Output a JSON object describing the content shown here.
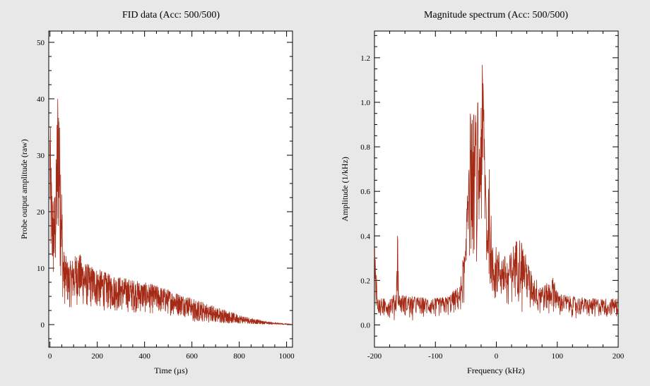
{
  "chart_data": [
    {
      "type": "line",
      "title": "FID data (Acc: 500/500)",
      "xlabel": "Time (µs)",
      "ylabel": "Probe output amplitude (raw)",
      "xlim": [
        -5,
        1025
      ],
      "ylim": [
        -4,
        52
      ],
      "xticks": [
        0,
        200,
        400,
        600,
        800,
        1000
      ],
      "yticks": [
        0,
        10,
        20,
        30,
        40,
        50
      ],
      "grid": false,
      "line_color": "#a52a16",
      "envelope": {
        "x": [
          0,
          4,
          8,
          12,
          16,
          20,
          25,
          30,
          34,
          38,
          42,
          46,
          50,
          55,
          60,
          70,
          80,
          100,
          120,
          150,
          200,
          250,
          300,
          350,
          400,
          450,
          500,
          550,
          600,
          650,
          700,
          750,
          800,
          850,
          900,
          950,
          1000,
          1020
        ],
        "y": [
          40,
          31,
          26,
          24,
          22,
          24,
          27,
          38,
          46,
          43,
          35,
          32,
          25,
          14,
          13,
          12,
          11,
          12,
          13,
          11,
          10,
          9,
          8.5,
          8,
          7.5,
          7,
          6.3,
          5.5,
          4.8,
          4,
          3.3,
          2.5,
          1.8,
          1.2,
          0.7,
          0.35,
          0.15,
          0.1
        ]
      }
    },
    {
      "type": "line",
      "title": "Magnitude spectrum (Acc: 500/500)",
      "xlabel": "Frequency (kHz)",
      "ylabel": "Amplitude (1/kHz)",
      "xlim": [
        -200,
        200
      ],
      "ylim": [
        -0.1,
        1.32
      ],
      "xticks": [
        -200,
        -100,
        0,
        100,
        200
      ],
      "yticks": [
        0.0,
        0.2,
        0.4,
        0.6,
        0.8,
        1.0,
        1.2
      ],
      "ytick_labels": [
        "0.0",
        "0.2",
        "0.4",
        "0.6",
        "0.8",
        "1.0",
        "1.2"
      ],
      "grid": false,
      "line_color": "#a52a16",
      "envelope": {
        "x": [
          -200,
          -199,
          -195,
          -180,
          -165,
          -162,
          -160,
          -140,
          -100,
          -80,
          -60,
          -55,
          -50,
          -48,
          -45,
          -40,
          -35,
          -30,
          -28,
          -25,
          -22,
          -20,
          -18,
          -15,
          -12,
          -10,
          -5,
          0,
          10,
          20,
          30,
          40,
          50,
          60,
          80,
          95,
          100,
          120,
          150,
          180,
          200
        ],
        "y": [
          0.35,
          0.4,
          0.12,
          0.12,
          0.14,
          0.45,
          0.14,
          0.13,
          0.12,
          0.13,
          0.18,
          0.3,
          0.35,
          0.7,
          0.95,
          0.98,
          0.95,
          1.02,
          0.85,
          1.15,
          1.18,
          1.05,
          0.8,
          0.5,
          0.75,
          0.55,
          0.4,
          0.35,
          0.32,
          0.3,
          0.38,
          0.4,
          0.3,
          0.22,
          0.18,
          0.22,
          0.15,
          0.13,
          0.12,
          0.12,
          0.12
        ]
      }
    }
  ]
}
